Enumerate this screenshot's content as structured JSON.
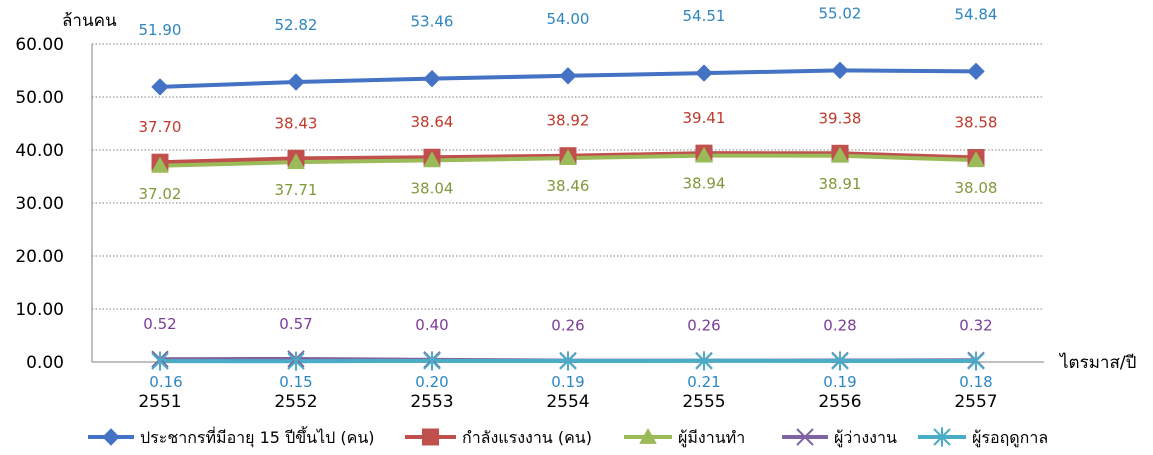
{
  "chart_data": {
    "type": "line",
    "ylabel": "ล้านคน",
    "xlabel": "ไตรมาส/ปี",
    "categories": [
      "2551",
      "2552",
      "2553",
      "2554",
      "2555",
      "2556",
      "2557"
    ],
    "ylim": [
      0,
      60
    ],
    "yticks": [
      "0.00",
      "10.00",
      "20.00",
      "30.00",
      "40.00",
      "50.00",
      "60.00"
    ],
    "grid": true,
    "legend_position": "bottom",
    "series": [
      {
        "name": "ประชากรที่มีอายุ 15 ปีขึ้นไป (คน)",
        "values": [
          51.9,
          52.82,
          53.46,
          54.0,
          54.51,
          55.02,
          54.84
        ],
        "labels": [
          "51.90",
          "52.82",
          "53.46",
          "54.00",
          "54.51",
          "55.02",
          "54.84"
        ],
        "color": "#4472C4",
        "label_color": "#2E86C1",
        "marker": "diamond",
        "label_side": "above"
      },
      {
        "name": "กำลังแรงงาน (คน)",
        "values": [
          37.7,
          38.43,
          38.64,
          38.92,
          39.41,
          39.38,
          38.58
        ],
        "labels": [
          "37.70",
          "38.43",
          "38.64",
          "38.92",
          "39.41",
          "39.38",
          "38.58"
        ],
        "color": "#C0504D",
        "label_color": "#C0392B",
        "marker": "square",
        "label_side": "above"
      },
      {
        "name": "ผู้มีงานทำ",
        "values": [
          37.02,
          37.71,
          38.04,
          38.46,
          38.94,
          38.91,
          38.08
        ],
        "labels": [
          "37.02",
          "37.71",
          "38.04",
          "38.46",
          "38.94",
          "38.91",
          "38.08"
        ],
        "color": "#9BBB59",
        "label_color": "#7F9A3C",
        "marker": "triangle",
        "label_side": "below"
      },
      {
        "name": "ผู้ว่างงาน",
        "values": [
          0.52,
          0.57,
          0.4,
          0.26,
          0.26,
          0.28,
          0.32
        ],
        "labels": [
          "0.52",
          "0.57",
          "0.40",
          "0.26",
          "0.26",
          "0.28",
          "0.32"
        ],
        "color": "#8064A2",
        "label_color": "#7D3C98",
        "marker": "x",
        "label_side": "above"
      },
      {
        "name": "ผู้รอฤดูกาล",
        "values": [
          0.16,
          0.15,
          0.2,
          0.19,
          0.21,
          0.19,
          0.18
        ],
        "labels": [
          "0.16",
          "0.15",
          "0.20",
          "0.19",
          "0.21",
          "0.19",
          "0.18"
        ],
        "color": "#4BACC6",
        "label_color": "#2E86C1",
        "marker": "star",
        "label_side": "below"
      }
    ]
  }
}
